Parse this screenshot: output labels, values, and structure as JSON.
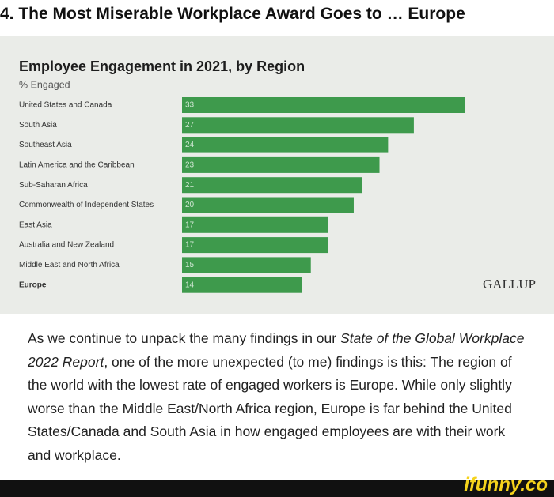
{
  "header": {
    "title": "4. The Most Miserable Workplace Award Goes to … Europe"
  },
  "chart_data": {
    "type": "bar",
    "orientation": "horizontal",
    "title": "Employee Engagement in 2021, by Region",
    "subtitle": "% Engaged",
    "categories": [
      "United States and Canada",
      "South Asia",
      "Southeast Asia",
      "Latin America and the Caribbean",
      "Sub-Saharan Africa",
      "Commonwealth of Independent States",
      "East Asia",
      "Australia and New Zealand",
      "Middle East and North Africa",
      "Europe"
    ],
    "values": [
      33,
      27,
      24,
      23,
      21,
      20,
      17,
      17,
      15,
      14
    ],
    "color": "#3e9a4c",
    "highlight": "Europe",
    "source_logo": "GALLUP"
  },
  "paragraph": [
    {
      "text": "As we continue to unpack the many findings in our ",
      "italic": false
    },
    {
      "text": "State of the Global Workplace 2022 Report",
      "italic": true
    },
    {
      "text": ", one of the more unexpected (to me) findings is this: The region of the world with the lowest rate of engaged workers is Europe. While only slightly worse than the Middle East/North Africa region, Europe is far behind the United States/Canada and South Asia in how engaged employees are with their work and workplace.",
      "italic": false
    }
  ],
  "watermark": "ifunny.co"
}
